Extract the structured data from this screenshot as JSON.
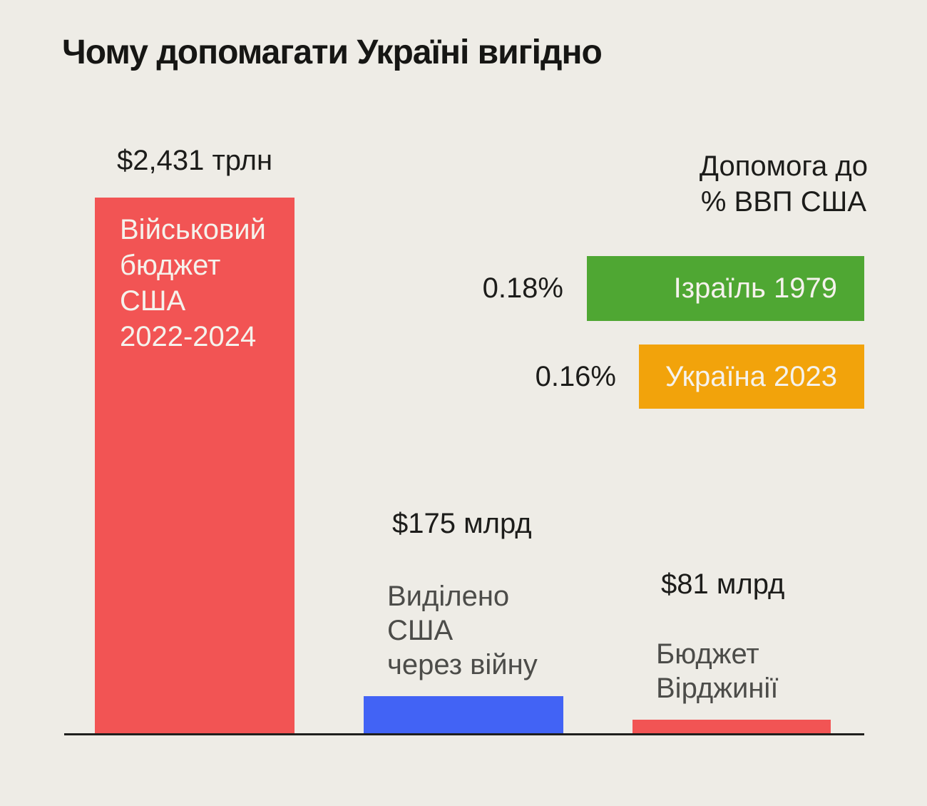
{
  "background": "#EEECE6",
  "colors": {
    "red": "#F25454",
    "blue": "#4263F5",
    "green": "#4FA733",
    "orange": "#F2A30B",
    "dark_text": "#1C1C1A",
    "gray_text": "#4C4C49",
    "light_text": "#F5F2EC",
    "baseline": "#1F1F1D"
  },
  "chart_data": {
    "type": "bar",
    "title": "Чому допомагати Україні вигідно",
    "main_series": {
      "orientation": "vertical",
      "unit": "USD",
      "bars": [
        {
          "label": "Військовий\nбюджет\nСША\n2022-2024",
          "value_label": "$2,431 трлн",
          "value_bln_usd": 2431,
          "color": "#F25454"
        },
        {
          "label": "Виділено\nСША\nчерез війну",
          "value_label": "$175 млрд",
          "value_bln_usd": 175,
          "color": "#4263F5"
        },
        {
          "label": "Бюджет\nВірджинії",
          "value_label": "$81 млрд",
          "value_bln_usd": 81,
          "color": "#F25454"
        }
      ]
    },
    "gdp_series": {
      "title": "Допомога до\n% ВВП США",
      "orientation": "horizontal",
      "unit": "% of US GDP",
      "bars": [
        {
          "label": "Ізраїль 1979",
          "value_label": "0.18%",
          "value_pct": 0.18,
          "color": "#4FA733"
        },
        {
          "label": "Україна 2023",
          "value_label": "0.16%",
          "value_pct": 0.16,
          "color": "#F2A30B"
        }
      ]
    },
    "layout": {
      "legend": "none",
      "grid": "off",
      "axis": "single bottom baseline"
    }
  }
}
